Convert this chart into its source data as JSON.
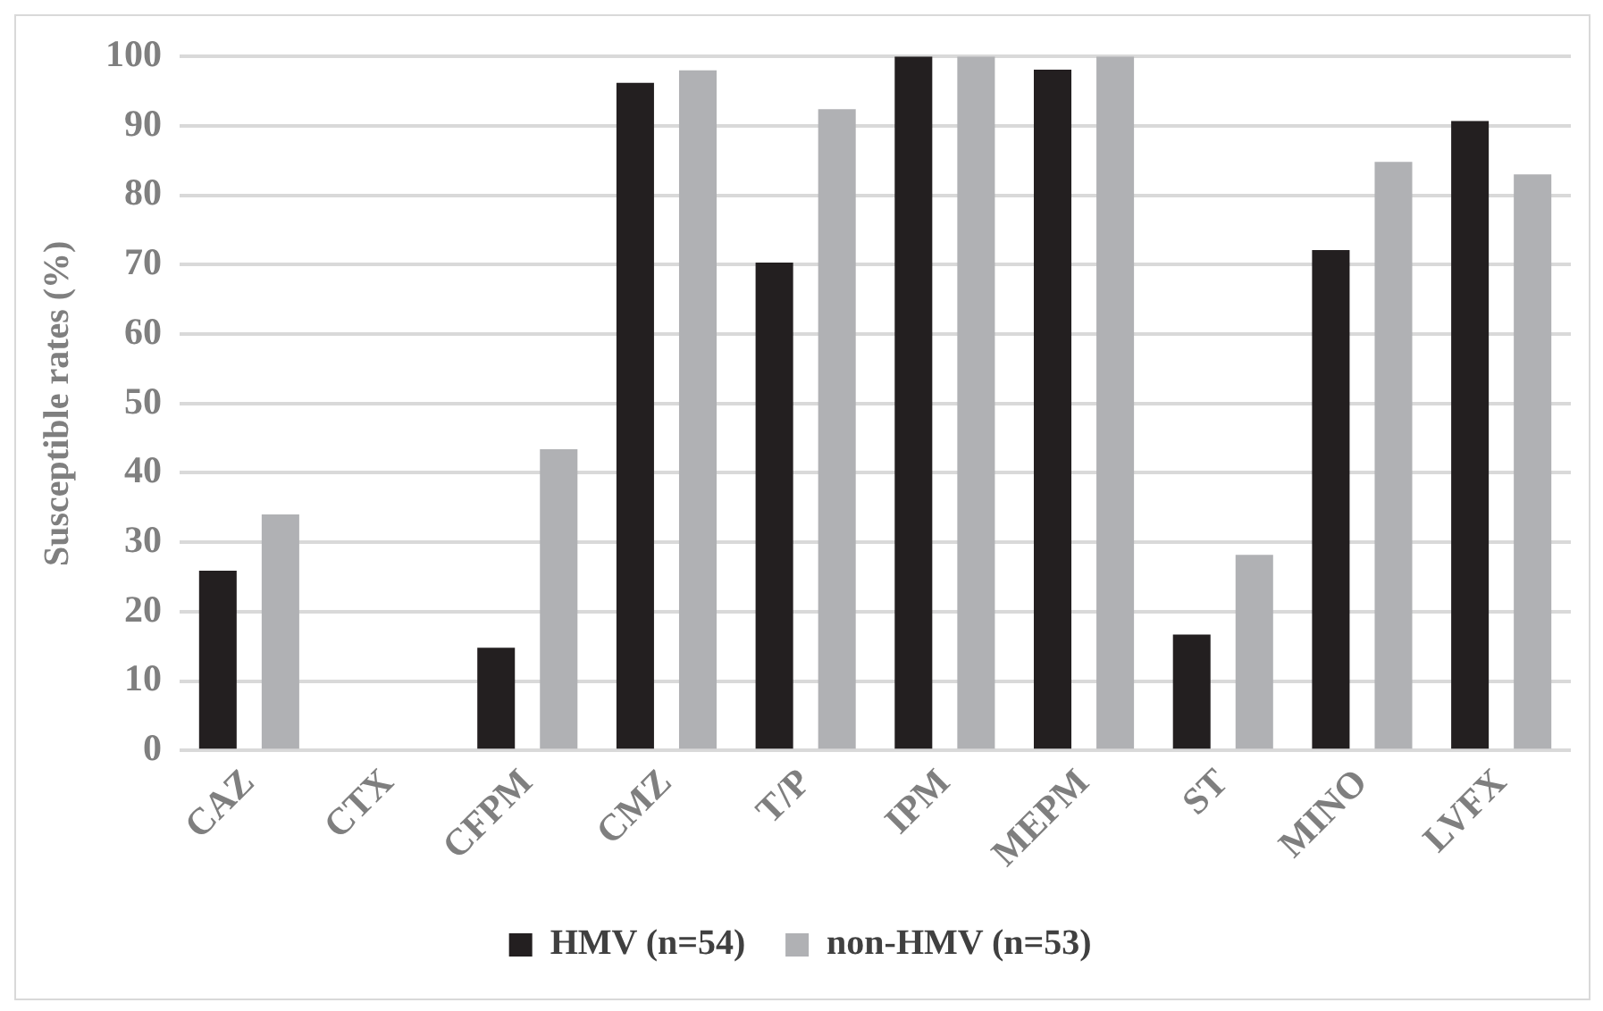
{
  "chart_data": {
    "type": "bar",
    "ylabel": "Susceptible rates (%)",
    "categories": [
      "CAZ",
      "CTX",
      "CFPM",
      "CMZ",
      "T/P",
      "IPM",
      "MEPM",
      "ST",
      "MINO",
      "LVFX"
    ],
    "series": [
      {
        "name": "HMV (n=54)",
        "color": "#231f20",
        "values": [
          25.9,
          0,
          14.8,
          96.2,
          70.3,
          100,
          98.1,
          16.7,
          72.1,
          90.7
        ]
      },
      {
        "name": "non-HMV (n=53)",
        "color": "#b0b1b4",
        "values": [
          34,
          0,
          43.4,
          98,
          92.4,
          100,
          100,
          28.2,
          84.8,
          83
        ]
      }
    ],
    "ylim": [
      0,
      100
    ],
    "yticks": [
      0,
      10,
      20,
      30,
      40,
      50,
      60,
      70,
      80,
      90,
      100
    ],
    "grid": "y",
    "legend": "bottom"
  }
}
